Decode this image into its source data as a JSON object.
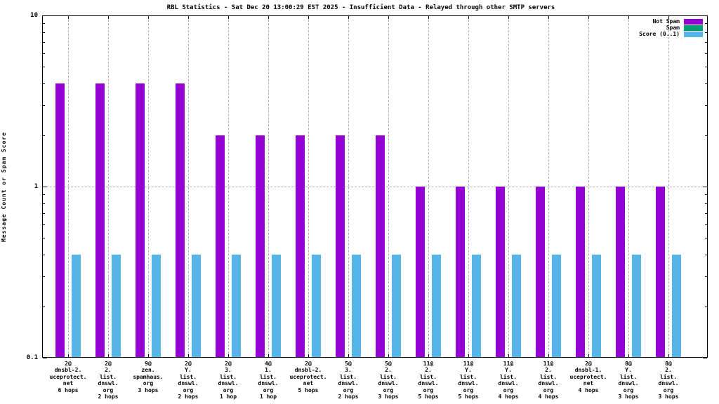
{
  "title": "RBL Statistics - Sat Dec 20 13:00:29 EST 2025 - Insufficient Data - Relayed through other SMTP servers",
  "ylabel": "Message Count or Spam Score",
  "legend": {
    "items": [
      {
        "label": "Not Spam",
        "color": "#9400d3"
      },
      {
        "label": "Spam",
        "color": "#009e73"
      },
      {
        "label": "Score (0..1)",
        "color": "#56b4e9"
      }
    ]
  },
  "chart_data": {
    "type": "bar",
    "title": "RBL Statistics - Sat Dec 20 13:00:29 EST 2025 - Insufficient Data - Relayed through other SMTP servers",
    "xlabel": "",
    "ylabel": "Message Count or Spam Score",
    "yscale": "log",
    "ylim": [
      0.1,
      10
    ],
    "ytick_values": [
      0.1,
      1,
      10
    ],
    "ytick_labels": [
      "0.1",
      "1",
      "10"
    ],
    "grid": true,
    "legend_position": "top-right",
    "grid_color": "#b0b0b0",
    "categories": [
      {
        "label_lines": [
          "2@",
          "dnsbl-2.",
          "uceprotect.",
          "net",
          "6 hops"
        ]
      },
      {
        "label_lines": [
          "2@",
          "2.",
          "list.",
          "dnswl.",
          "org",
          "2 hops"
        ]
      },
      {
        "label_lines": [
          "9@",
          "zen.",
          "spamhaus.",
          "org",
          "3 hops"
        ]
      },
      {
        "label_lines": [
          "2@",
          "Y.",
          "list.",
          "dnswl.",
          "org",
          "2 hops"
        ]
      },
      {
        "label_lines": [
          "2@",
          "3.",
          "list.",
          "dnswl.",
          "org",
          "1 hop"
        ]
      },
      {
        "label_lines": [
          "4@",
          "1.",
          "list.",
          "dnswl.",
          "org",
          "1 hop"
        ]
      },
      {
        "label_lines": [
          "2@",
          "dnsbl-2.",
          "uceprotect.",
          "net",
          "5 hops"
        ]
      },
      {
        "label_lines": [
          "5@",
          "3.",
          "list.",
          "dnswl.",
          "org",
          "2 hops"
        ]
      },
      {
        "label_lines": [
          "5@",
          "2.",
          "list.",
          "dnswl.",
          "org",
          "3 hops"
        ]
      },
      {
        "label_lines": [
          "11@",
          "2.",
          "list.",
          "dnswl.",
          "org",
          "5 hops"
        ]
      },
      {
        "label_lines": [
          "11@",
          "Y.",
          "list.",
          "dnswl.",
          "org",
          "5 hops"
        ]
      },
      {
        "label_lines": [
          "11@",
          "Y.",
          "list.",
          "dnswl.",
          "org",
          "4 hops"
        ]
      },
      {
        "label_lines": [
          "11@",
          "2.",
          "list.",
          "dnswl.",
          "org",
          "4 hops"
        ]
      },
      {
        "label_lines": [
          "2@",
          "dnsbl-1.",
          "uceprotect.",
          "net",
          "4 hops"
        ]
      },
      {
        "label_lines": [
          "8@",
          "Y.",
          "list.",
          "dnswl.",
          "org",
          "3 hops"
        ]
      },
      {
        "label_lines": [
          "8@",
          "2.",
          "list.",
          "dnswl.",
          "org",
          "3 hops"
        ]
      }
    ],
    "series": [
      {
        "name": "Not Spam",
        "color": "#9400d3",
        "values": [
          4,
          4,
          4,
          4,
          2,
          2,
          2,
          2,
          2,
          1,
          1,
          1,
          1,
          1,
          1,
          1
        ]
      },
      {
        "name": "Spam",
        "color": "#009e73",
        "values": [
          0,
          0,
          0,
          0,
          0,
          0,
          0,
          0,
          0,
          0,
          0,
          0,
          0,
          0,
          0,
          0
        ]
      },
      {
        "name": "Score (0..1)",
        "color": "#56b4e9",
        "values": [
          0.4,
          0.4,
          0.4,
          0.4,
          0.4,
          0.4,
          0.4,
          0.4,
          0.4,
          0.4,
          0.4,
          0.4,
          0.4,
          0.4,
          0.4,
          0.4
        ]
      }
    ]
  }
}
